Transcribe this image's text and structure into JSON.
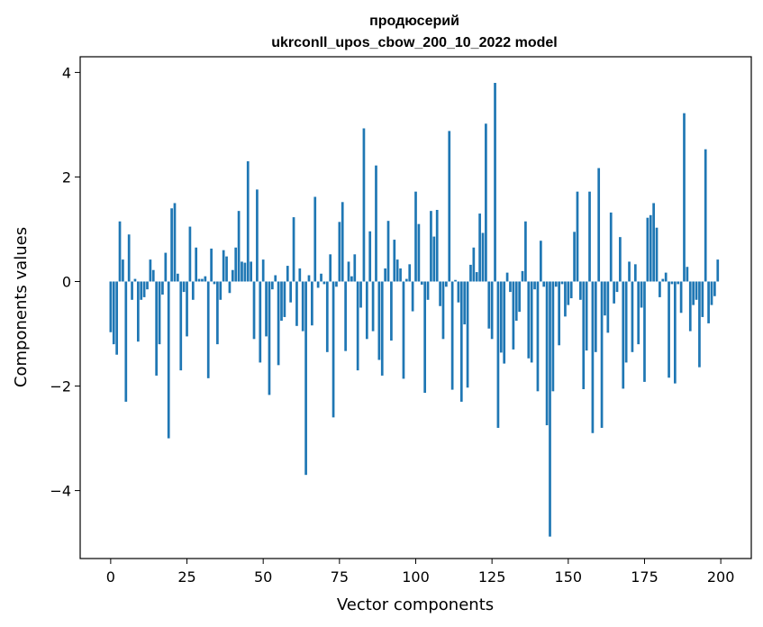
{
  "chart_data": {
    "type": "bar",
    "title_lines": [
      "продюсерий",
      "ukrconll_upos_cbow_200_10_2022 model"
    ],
    "xlabel": "Vector components",
    "ylabel": "Components values",
    "xlim": [
      -10,
      210
    ],
    "ylim": [
      -5.3,
      4.3
    ],
    "xticks": [
      0,
      25,
      50,
      75,
      100,
      125,
      150,
      175,
      200
    ],
    "yticks": [
      4,
      2,
      0,
      -2,
      -4
    ],
    "ytick_labels": [
      "4",
      "2",
      "0",
      "−2",
      "−4"
    ],
    "bar_color": "#1f77b4",
    "grid": false,
    "x": [
      0,
      1,
      2,
      3,
      4,
      5,
      6,
      7,
      8,
      9,
      10,
      11,
      12,
      13,
      14,
      15,
      16,
      17,
      18,
      19,
      20,
      21,
      22,
      23,
      24,
      25,
      26,
      27,
      28,
      29,
      30,
      31,
      32,
      33,
      34,
      35,
      36,
      37,
      38,
      39,
      40,
      41,
      42,
      43,
      44,
      45,
      46,
      47,
      48,
      49,
      50,
      51,
      52,
      53,
      54,
      55,
      56,
      57,
      58,
      59,
      60,
      61,
      62,
      63,
      64,
      65,
      66,
      67,
      68,
      69,
      70,
      71,
      72,
      73,
      74,
      75,
      76,
      77,
      78,
      79,
      80,
      81,
      82,
      83,
      84,
      85,
      86,
      87,
      88,
      89,
      90,
      91,
      92,
      93,
      94,
      95,
      96,
      97,
      98,
      99,
      100,
      101,
      102,
      103,
      104,
      105,
      106,
      107,
      108,
      109,
      110,
      111,
      112,
      113,
      114,
      115,
      116,
      117,
      118,
      119,
      120,
      121,
      122,
      123,
      124,
      125,
      126,
      127,
      128,
      129,
      130,
      131,
      132,
      133,
      134,
      135,
      136,
      137,
      138,
      139,
      140,
      141,
      142,
      143,
      144,
      145,
      146,
      147,
      148,
      149,
      150,
      151,
      152,
      153,
      154,
      155,
      156,
      157,
      158,
      159,
      160,
      161,
      162,
      163,
      164,
      165,
      166,
      167,
      168,
      169,
      170,
      171,
      172,
      173,
      174,
      175,
      176,
      177,
      178,
      179,
      180,
      181,
      182,
      183,
      184,
      185,
      186,
      187,
      188,
      189,
      190,
      191,
      192,
      193,
      194,
      195,
      196,
      197,
      198,
      199
    ],
    "values": [
      -0.97,
      -1.2,
      -1.4,
      1.15,
      0.42,
      -2.3,
      0.9,
      -0.35,
      0.05,
      -1.15,
      -0.35,
      -0.3,
      -0.15,
      0.42,
      0.22,
      -1.8,
      -1.2,
      -0.25,
      0.55,
      -3.0,
      1.4,
      1.5,
      0.15,
      -1.7,
      -0.2,
      -1.05,
      1.05,
      -0.35,
      0.65,
      0.05,
      0.05,
      0.1,
      -1.85,
      0.63,
      -0.05,
      -1.2,
      -0.35,
      0.6,
      0.48,
      -0.22,
      0.22,
      0.65,
      1.35,
      0.38,
      0.36,
      2.3,
      0.38,
      -1.1,
      1.76,
      -1.55,
      0.42,
      -1.05,
      -2.17,
      -0.15,
      0.12,
      -1.6,
      -0.75,
      -0.68,
      0.3,
      -0.4,
      1.23,
      -0.85,
      0.25,
      -0.95,
      -3.7,
      0.12,
      -0.84,
      1.62,
      -0.12,
      0.15,
      -0.05,
      -1.35,
      0.52,
      -2.6,
      -0.1,
      1.14,
      1.52,
      -1.33,
      0.38,
      0.1,
      0.52,
      -1.7,
      -0.5,
      2.93,
      -1.1,
      0.96,
      -0.95,
      2.22,
      -1.5,
      -1.8,
      0.25,
      1.16,
      -1.13,
      0.8,
      0.42,
      0.25,
      -1.86,
      0.05,
      0.33,
      -0.57,
      1.72,
      1.1,
      -0.06,
      -2.13,
      -0.35,
      1.35,
      0.86,
      1.37,
      -0.47,
      -1.1,
      -0.1,
      2.88,
      -2.07,
      0.03,
      -0.4,
      -2.3,
      -0.82,
      -2.03,
      0.32,
      0.65,
      0.18,
      1.3,
      0.93,
      3.02,
      -0.9,
      -1.1,
      3.8,
      -2.8,
      -1.36,
      -1.57,
      0.17,
      -0.2,
      -1.3,
      -0.75,
      -0.58,
      0.2,
      1.15,
      -1.47,
      -1.55,
      -0.15,
      -2.1,
      0.78,
      -0.1,
      -2.75,
      -4.88,
      -2.1,
      -0.1,
      -1.22,
      -0.05,
      -0.67,
      -0.45,
      -0.32,
      0.95,
      1.72,
      -0.35,
      -2.06,
      -1.32,
      1.72,
      -2.9,
      -1.35,
      2.17,
      -2.8,
      -0.65,
      -0.98,
      1.32,
      -0.42,
      -0.2,
      0.85,
      -2.05,
      -1.55,
      0.38,
      -1.35,
      0.33,
      -1.2,
      -0.5,
      -1.92,
      1.22,
      1.27,
      1.5,
      1.03,
      -0.3,
      0.05,
      0.17,
      -1.84,
      -0.05,
      -1.95,
      -0.05,
      -0.6,
      3.22,
      0.28,
      -0.95,
      -0.45,
      -0.35,
      -1.64,
      -0.68,
      2.53,
      -0.8,
      -0.45,
      -0.28,
      0.42
    ]
  }
}
